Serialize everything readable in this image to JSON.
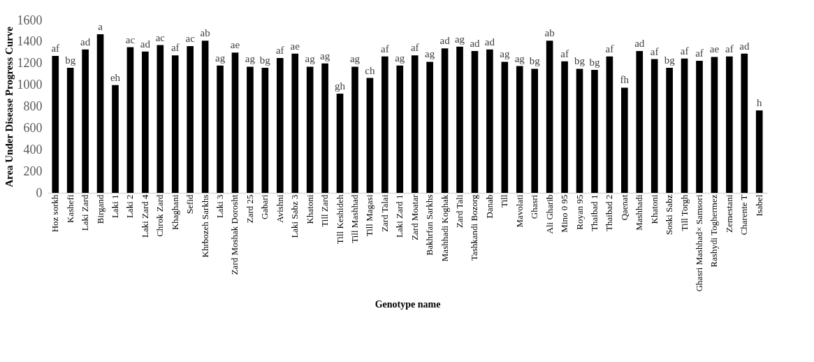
{
  "chart_data": {
    "type": "bar",
    "xlabel": "Genotype name",
    "ylabel": "Area Under Disease Progress Curve",
    "categories": [
      "Hoz sorkh",
      "Kashefi",
      "Laki Zard",
      "Birgand",
      "Laki 1",
      "Laki 2",
      "Laki Zard 4",
      "Chrok Zard",
      "Khaghani",
      "Sefid",
      "Khrbozeh Sarkhs",
      "Laki 3",
      "Zard Moshak Dorosht",
      "Zard 25",
      "Gabari",
      "Avishni",
      "Laki Sabz 3",
      "Khatoni",
      "Till Zard",
      "Till Keshideh",
      "Till Mashhad",
      "Till Magasi",
      "Zard Talai",
      "Laki Zard 1",
      "Zard Moatar",
      "Bakhrfan Sarkhs",
      "Mashhadi Koghak",
      "Zard Tali",
      "Tashkandi Bozorg",
      "Danab",
      "Till",
      "Mavolati",
      "Ghasri",
      "Ali Gharib",
      "Mino 0 95",
      "Royan 95",
      "Thaibad 1",
      "Thaibad 2",
      "Qaenat",
      "Mashhadi",
      "Khatoni",
      "Soski Sabz",
      "Till Torgh",
      "Ghasri Mashhad× Samsori",
      "Rashydi Toghermez",
      "Zemestani",
      "Charente T",
      "Isabel"
    ],
    "values": [
      1270,
      1160,
      1330,
      1470,
      1000,
      1350,
      1310,
      1370,
      1275,
      1360,
      1410,
      1180,
      1300,
      1170,
      1160,
      1250,
      1290,
      1170,
      1200,
      920,
      1170,
      1065,
      1265,
      1180,
      1275,
      1215,
      1340,
      1355,
      1315,
      1330,
      1215,
      1175,
      1150,
      1410,
      1220,
      1150,
      1140,
      1265,
      975,
      1315,
      1240,
      1160,
      1245,
      1225,
      1260,
      1265,
      1290,
      765
    ],
    "value_labels": [
      "af",
      "bg",
      "ad",
      "a",
      "eh",
      "ac",
      "ad",
      "ac",
      "af",
      "ac",
      "ab",
      "ag",
      "ae",
      "ag",
      "bg",
      "af",
      "ae",
      "ag",
      "ag",
      "gh",
      "ag",
      "ch",
      "af",
      "ag",
      "af",
      "ag",
      "ad",
      "ag",
      "ad",
      "ad",
      "ag",
      "ag",
      "bg",
      "ab",
      "af",
      "bg",
      "bg",
      "af",
      "fh",
      "ad",
      "af",
      "bg",
      "af",
      "af",
      "ae",
      "af",
      "ad",
      "h"
    ],
    "color": "#000000",
    "ylim": [
      0,
      1600
    ],
    "yticks": [
      0,
      200,
      400,
      600,
      800,
      1000,
      1200,
      1400,
      1600
    ],
    "grid": false
  }
}
